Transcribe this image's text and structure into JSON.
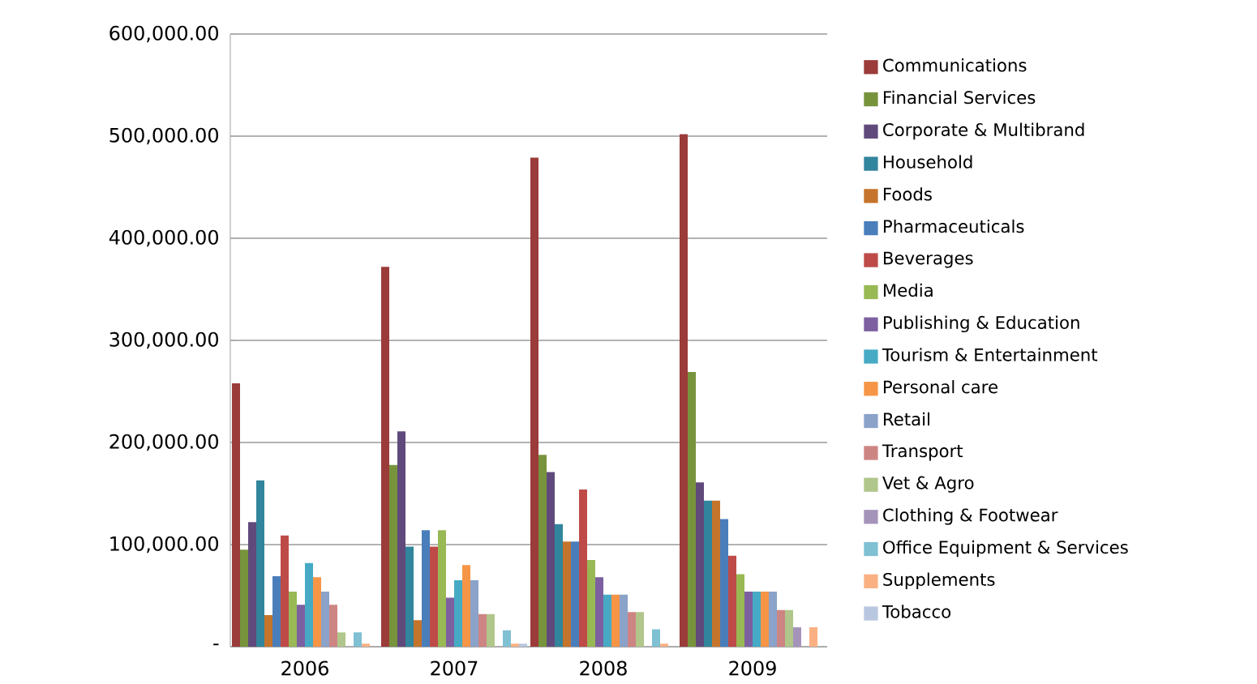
{
  "chart_data": {
    "type": "bar",
    "categories": [
      "2006",
      "2007",
      "2008",
      "2009"
    ],
    "ylim": [
      0,
      600000
    ],
    "yticks": [
      {
        "value": 0,
        "label": "-"
      },
      {
        "value": 100000,
        "label": "100,000.00"
      },
      {
        "value": 200000,
        "label": "200,000.00"
      },
      {
        "value": 300000,
        "label": "300,000.00"
      },
      {
        "value": 400000,
        "label": "400,000.00"
      },
      {
        "value": 500000,
        "label": "500,000.00"
      },
      {
        "value": 600000,
        "label": "600,000.00"
      }
    ],
    "grid": "y",
    "legend": "right",
    "series": [
      {
        "name": "Communications",
        "color": "#9b3b3a",
        "values": [
          258000,
          372000,
          479000,
          502000
        ]
      },
      {
        "name": "Financial Services",
        "color": "#77933c",
        "values": [
          95000,
          178000,
          188000,
          269000
        ]
      },
      {
        "name": "Corporate & Multibrand",
        "color": "#604a7b",
        "values": [
          122000,
          211000,
          171000,
          161000
        ]
      },
      {
        "name": "Household",
        "color": "#31859c",
        "values": [
          163000,
          98000,
          120000,
          143000
        ]
      },
      {
        "name": "Foods",
        "color": "#c5742c",
        "values": [
          31000,
          26000,
          103000,
          143000
        ]
      },
      {
        "name": "Pharmaceuticals",
        "color": "#4a7ebb",
        "values": [
          69000,
          114000,
          103000,
          125000
        ]
      },
      {
        "name": "Beverages",
        "color": "#be4b48",
        "values": [
          109000,
          98000,
          154000,
          89000
        ]
      },
      {
        "name": "Media",
        "color": "#98b954",
        "values": [
          54000,
          114000,
          85000,
          71000
        ]
      },
      {
        "name": "Publishing & Education",
        "color": "#7d60a0",
        "values": [
          41000,
          48000,
          68000,
          54000
        ]
      },
      {
        "name": "Tourism & Entertainment",
        "color": "#46aac5",
        "values": [
          82000,
          65000,
          51000,
          54000
        ]
      },
      {
        "name": "Personal care",
        "color": "#f69546",
        "values": [
          68000,
          80000,
          51000,
          54000
        ]
      },
      {
        "name": "Retail",
        "color": "#8ba2c9",
        "values": [
          54000,
          65000,
          51000,
          54000
        ]
      },
      {
        "name": "Transport",
        "color": "#cd8584",
        "values": [
          41000,
          32000,
          34000,
          36000
        ]
      },
      {
        "name": "Vet & Agro",
        "color": "#b0c68a",
        "values": [
          14000,
          32000,
          34000,
          36000
        ]
      },
      {
        "name": "Clothing & Footwear",
        "color": "#a594ba",
        "values": [
          null,
          null,
          null,
          19000
        ]
      },
      {
        "name": "Office Equipment & Services",
        "color": "#7fc0d3",
        "values": [
          14000,
          16000,
          17000,
          null
        ]
      },
      {
        "name": "Supplements",
        "color": "#fab083",
        "values": [
          3000,
          3000,
          3000,
          19000
        ]
      },
      {
        "name": "Tobacco",
        "color": "#b9c6e0",
        "values": [
          null,
          3000,
          null,
          null
        ]
      }
    ]
  }
}
